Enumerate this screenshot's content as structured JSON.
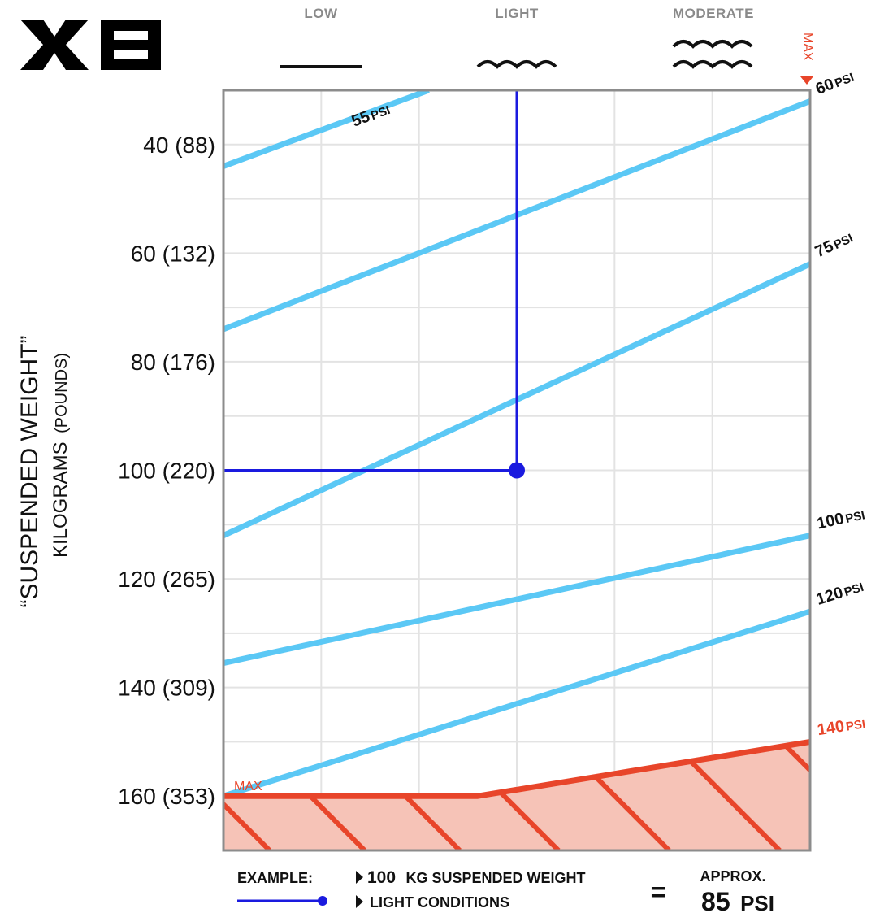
{
  "logo": {
    "text": "XB"
  },
  "conditions": [
    {
      "id": "low",
      "label": "LOW"
    },
    {
      "id": "light",
      "label": "LIGHT"
    },
    {
      "id": "moderate",
      "label": "MODERATE"
    }
  ],
  "max_marker": {
    "label": "MAX"
  },
  "y_axis": {
    "title": "“SUSPENDED WEIGHT”",
    "subtitle_main": "KILOGRAMS",
    "subtitle_unit": "(POUNDS)"
  },
  "chart_data": {
    "type": "line",
    "x_categories": [
      "LOW",
      "LIGHT",
      "MODERATE",
      "MAX"
    ],
    "xlim": [
      0,
      6
    ],
    "ylim": [
      30,
      170
    ],
    "grid": true,
    "y_ticks": [
      {
        "value": 40,
        "label": "40 (88)"
      },
      {
        "value": 60,
        "label": "60 (132)"
      },
      {
        "value": 80,
        "label": "80 (176)"
      },
      {
        "value": 100,
        "label": "100 (220)"
      },
      {
        "value": 120,
        "label": "120 (265)"
      },
      {
        "value": 140,
        "label": "140 (309)"
      },
      {
        "value": 160,
        "label": "160 (353)"
      }
    ],
    "series": [
      {
        "num": "55",
        "unit": "PSI",
        "points": [
          [
            0,
            44
          ],
          [
            2.1,
            30
          ]
        ]
      },
      {
        "num": "60",
        "unit": "PSI",
        "points": [
          [
            0,
            74
          ],
          [
            6,
            32
          ]
        ]
      },
      {
        "num": "75",
        "unit": "PSI",
        "points": [
          [
            0,
            112
          ],
          [
            6,
            62
          ]
        ]
      },
      {
        "num": "100",
        "unit": "PSI",
        "points": [
          [
            0,
            135.5
          ],
          [
            6,
            112
          ]
        ]
      },
      {
        "num": "120",
        "unit": "PSI",
        "points": [
          [
            0,
            160
          ],
          [
            6,
            126
          ]
        ]
      },
      {
        "num": "140",
        "unit": "PSI",
        "max": true,
        "points": [
          [
            0,
            160
          ],
          [
            2.6,
            160
          ],
          [
            6,
            150
          ]
        ]
      }
    ],
    "example_point": {
      "x": 3,
      "y": 100
    },
    "max_zone_label": "MAX"
  },
  "example": {
    "label": "EXAMPLE:",
    "weight_num": "100",
    "weight_text": "KG SUSPENDED WEIGHT",
    "conditions_text": "LIGHT CONDITIONS",
    "equals": "=",
    "approx": "APPROX.",
    "result_num": "85",
    "result_unit": "PSI"
  },
  "colors": {
    "psi_line": "#5bc8f5",
    "example_line": "#1a1adf",
    "max_zone": "#e8452a",
    "max_fill": "#f6c3b7",
    "frame": "#8c8c8c",
    "grid": "#e3e3e3"
  }
}
